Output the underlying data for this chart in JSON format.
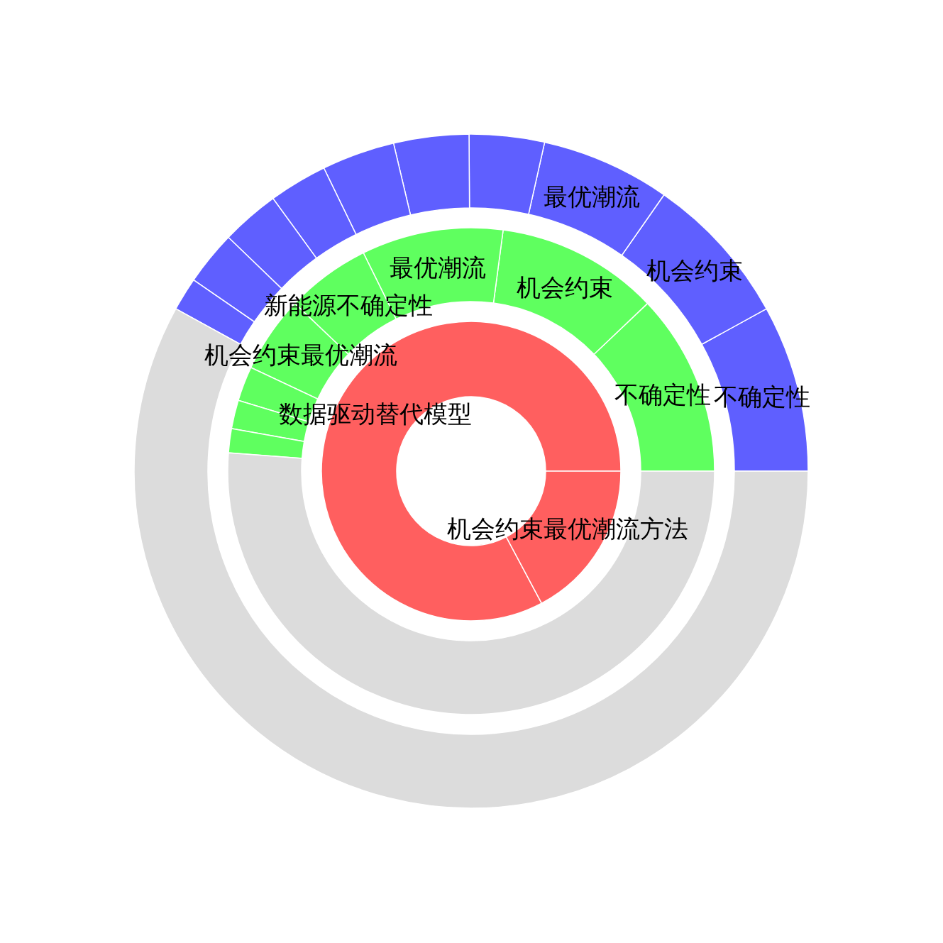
{
  "chart_data": [
    {
      "type": "donut",
      "categories": [
        "数据驱动替代模型",
        "机会约束最优潮流方法"
      ],
      "values": [
        82.8,
        17.2
      ],
      "colors": [
        "#ff5f5f",
        "#ff5f5f"
      ]
    },
    {
      "type": "donut",
      "categories": [
        "不确定性",
        "机会约束",
        "最优潮流",
        "新能源不确定性",
        "机会约束最优潮流",
        null,
        null,
        null,
        null
      ],
      "values": [
        12.1,
        10.8,
        9.4,
        5.6,
        5.1,
        2.3,
        1.9,
        1.6,
        51.2
      ],
      "colors": [
        "#5fff5f",
        "#5fff5f",
        "#5fff5f",
        "#5fff5f",
        "#5fff5f",
        "#5fff5f",
        "#5fff5f",
        "#5fff5f",
        "#dcdcdc"
      ]
    },
    {
      "type": "donut",
      "categories": [
        "不确定性",
        "机会约束",
        "最优潮流",
        null,
        null,
        null,
        null,
        null,
        null,
        null,
        null
      ],
      "values": [
        8.0,
        7.3,
        6.2,
        3.6,
        3.6,
        3.5,
        2.8,
        2.8,
        2.6,
        1.6,
        58.0
      ],
      "colors": [
        "#5f5fff",
        "#5f5fff",
        "#5f5fff",
        "#5f5fff",
        "#5f5fff",
        "#5f5fff",
        "#5f5fff",
        "#5f5fff",
        "#5f5fff",
        "#5f5fff",
        "#dcdcdc"
      ]
    }
  ]
}
